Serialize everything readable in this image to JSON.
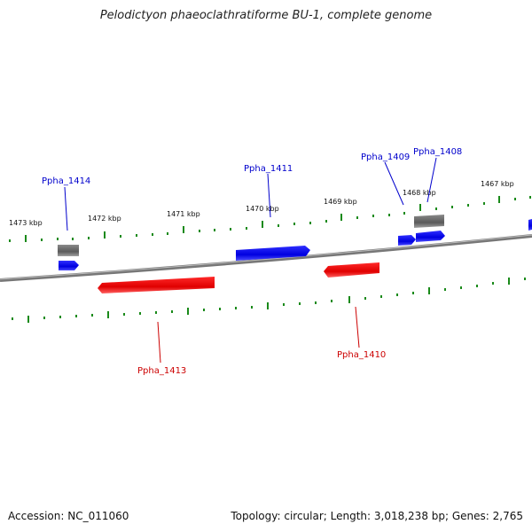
{
  "title": "Pelodictyon phaeoclathratiforme BU-1, complete genome",
  "accession": "Accession: NC_011060",
  "topology": "Topology: circular; Length: 3,018,238 bp; Genes: 2,765",
  "colors": {
    "forward": "#0000ee",
    "reverse": "#ee0000",
    "other": "#666666",
    "tick": "#1a8a1a",
    "backbone": "#777777"
  },
  "ticks": [
    {
      "label": "1473 kbp"
    },
    {
      "label": "1472 kbp"
    },
    {
      "label": "1471 kbp"
    },
    {
      "label": "1470 kbp"
    },
    {
      "label": "1469 kbp"
    },
    {
      "label": "1468 kbp"
    },
    {
      "label": "1467 kbp"
    }
  ],
  "genes": [
    {
      "label": "Ppha_1414",
      "strand": "forward"
    },
    {
      "label": "Ppha_1411",
      "strand": "forward"
    },
    {
      "label": "Ppha_1409",
      "strand": "forward"
    },
    {
      "label": "Ppha_1408",
      "strand": "forward"
    },
    {
      "label": "Ppha_1413",
      "strand": "reverse"
    },
    {
      "label": "Ppha_1410",
      "strand": "reverse"
    }
  ]
}
